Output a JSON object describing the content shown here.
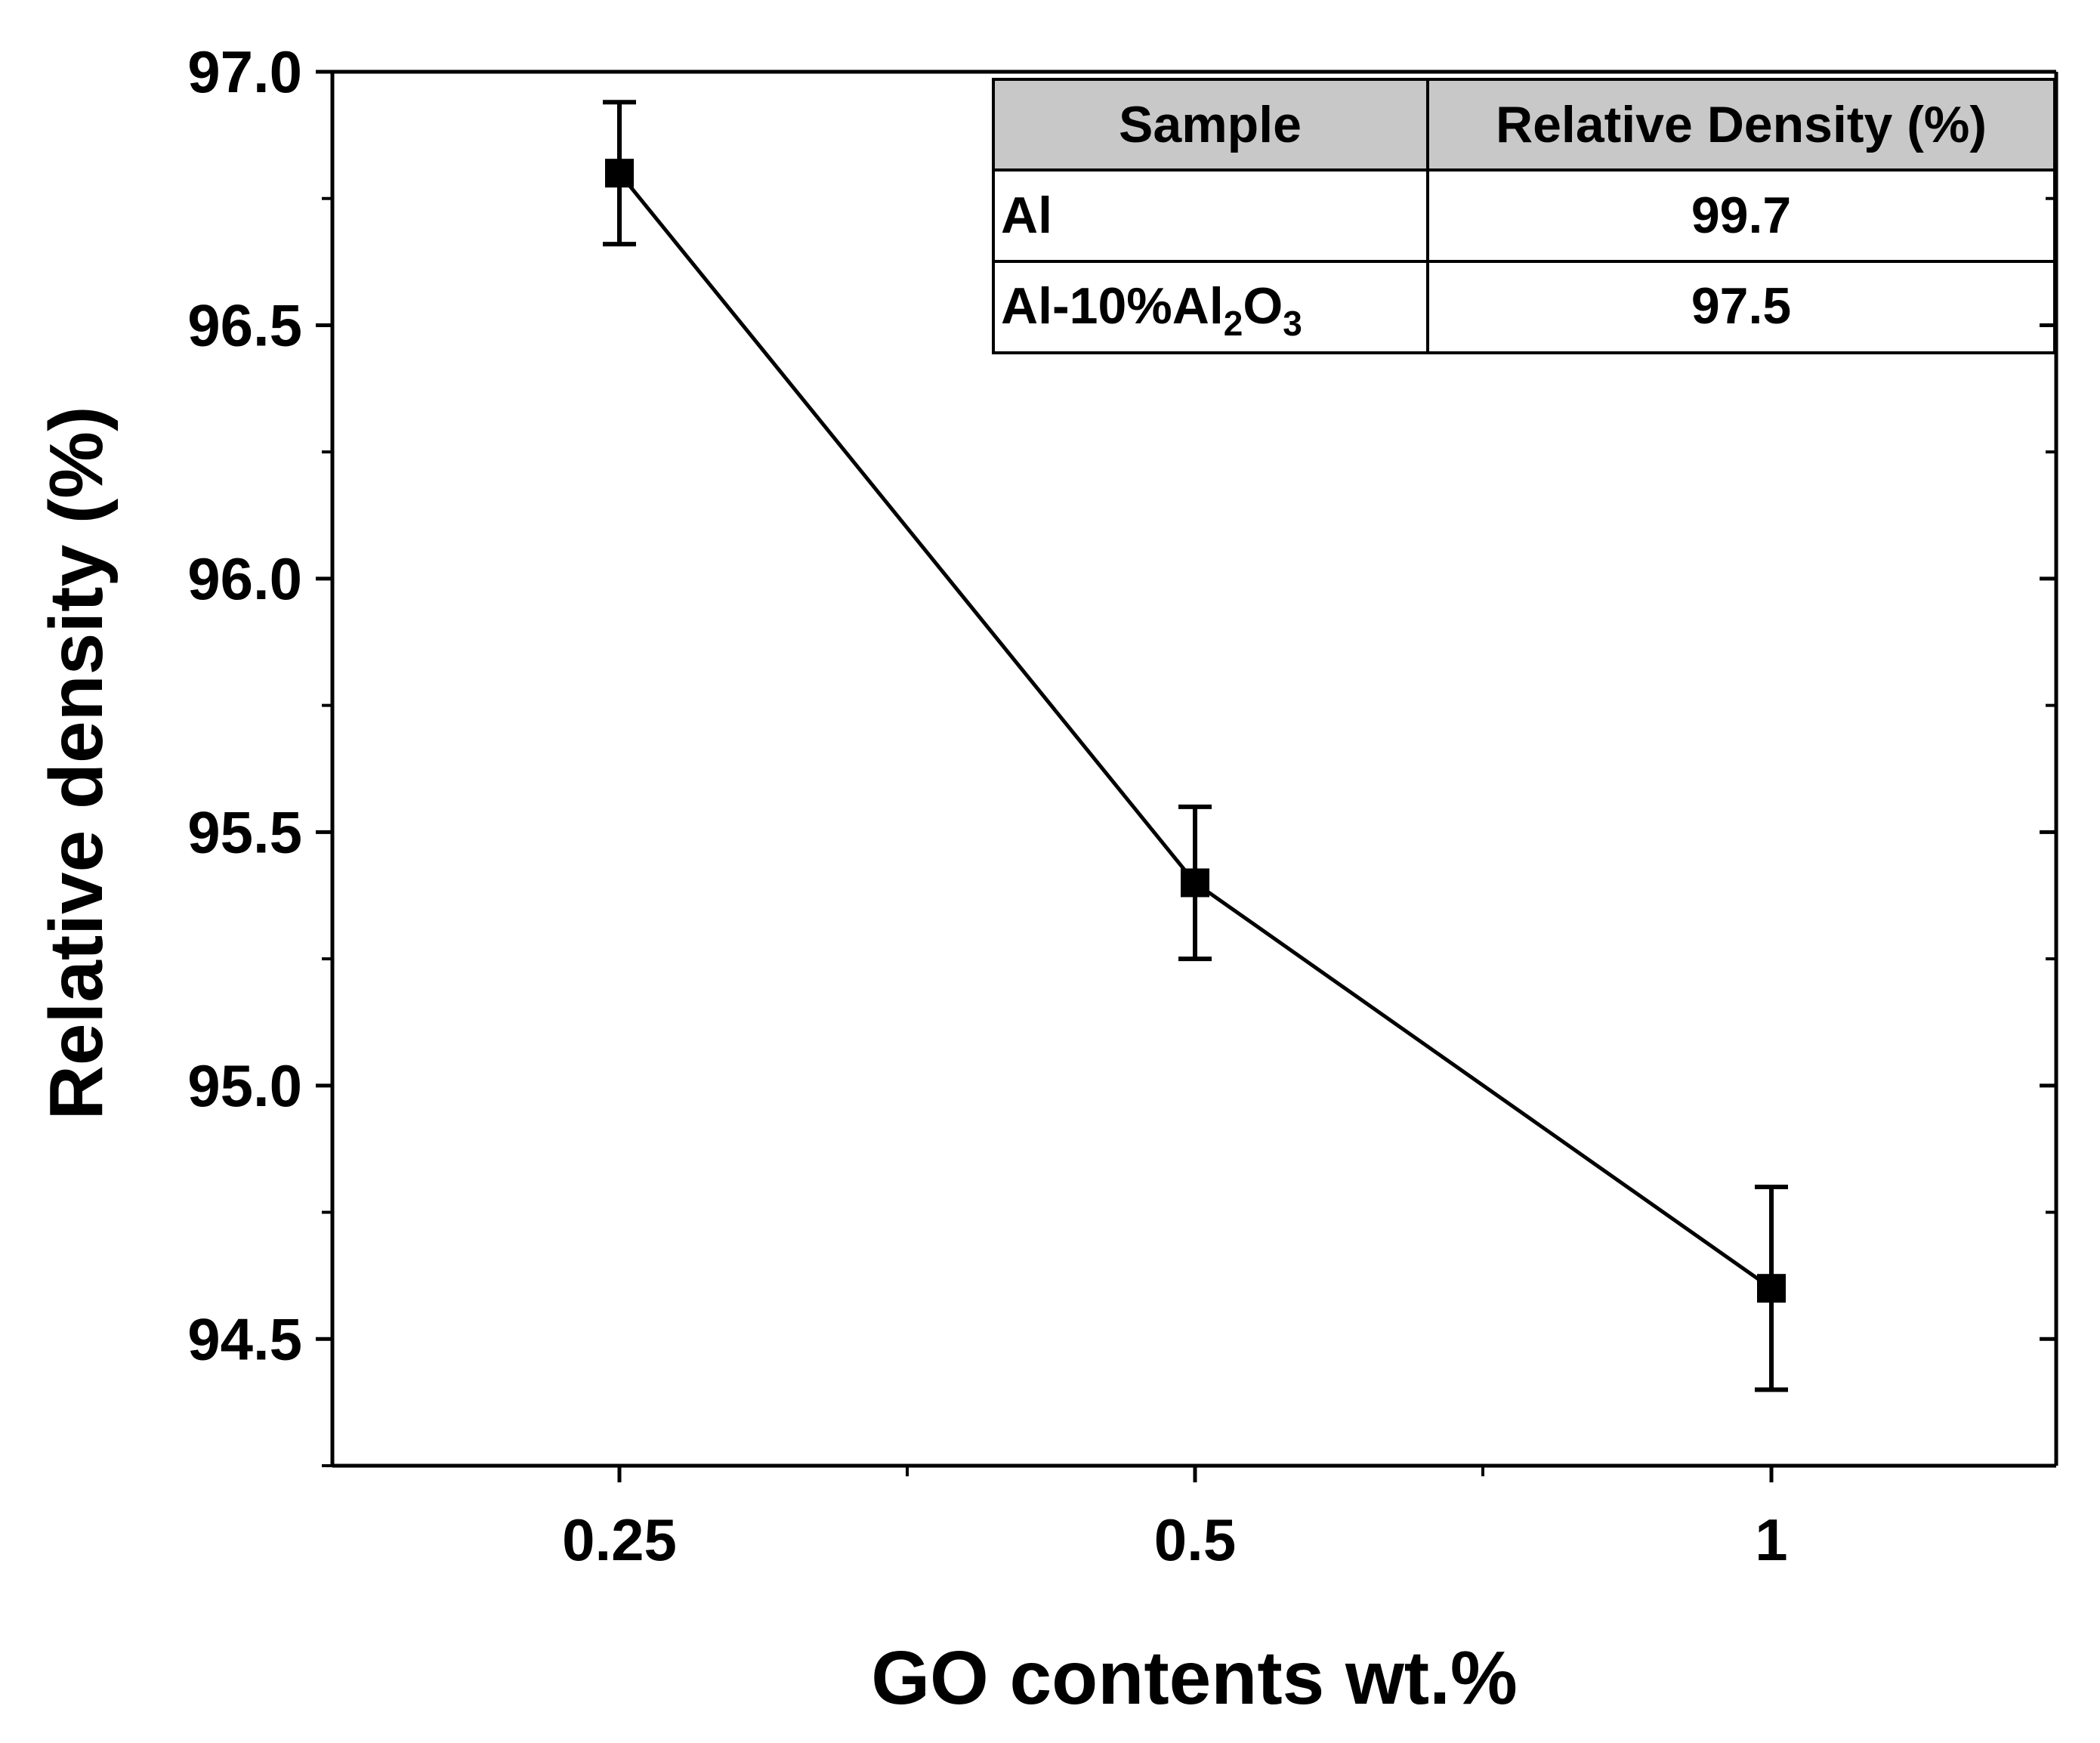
{
  "chart_data": {
    "type": "line",
    "title": "",
    "xlabel": "GO contents wt.%",
    "ylabel": "Relative density (%)",
    "categories": [
      "0.25",
      "0.5",
      "1"
    ],
    "ylim": [
      94.25,
      97.0
    ],
    "yticks": [
      "94.5",
      "95.0",
      "95.5",
      "96.0",
      "96.5",
      "97.0"
    ],
    "series": [
      {
        "name": "Relative density",
        "values": [
          96.8,
          95.4,
          94.6
        ],
        "error_lower": [
          96.66,
          95.25,
          94.4
        ],
        "error_upper": [
          96.94,
          95.55,
          94.8
        ],
        "marker": "square",
        "color": "#000000"
      }
    ],
    "inset_table": {
      "headers": [
        "Sample",
        "Relative Density (%)"
      ],
      "rows": [
        {
          "sample": "Al",
          "value": "99.7"
        },
        {
          "sample_main": "Al-10%Al",
          "sample_sub1": "2",
          "sample_mid": "O",
          "sample_sub2": "3",
          "value": "97.5"
        }
      ],
      "header_bg": "#c8c8c8"
    }
  }
}
